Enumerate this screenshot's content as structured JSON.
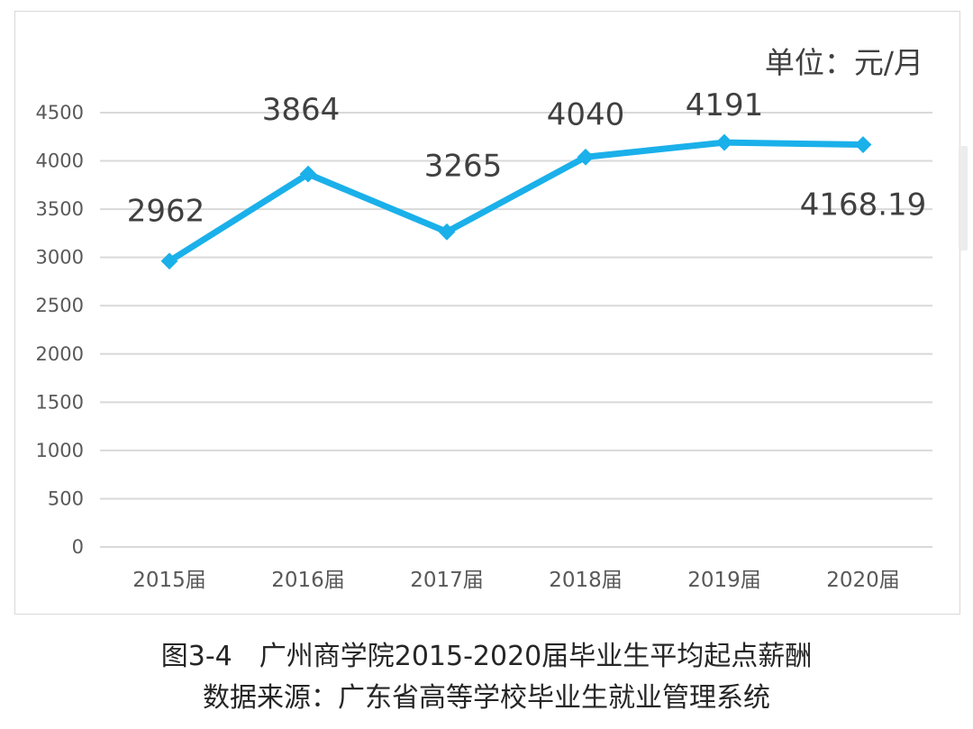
{
  "unit_label": "单位：元/月",
  "figure_caption": "图3-4　广州商学院2015-2020届毕业生平均起点薪酬",
  "source_caption": "数据来源：广东省高等学校毕业生就业管理系统",
  "colors": {
    "series": "#1ab0ea",
    "grid": "#d9d9d9",
    "tick_text": "#595959",
    "data_label": "#404040"
  },
  "chart_data": {
    "type": "line",
    "categories": [
      "2015届",
      "2016届",
      "2017届",
      "2018届",
      "2019届",
      "2020届"
    ],
    "series": [
      {
        "values": [
          2962,
          3864,
          3265,
          4040,
          4191,
          4168.19
        ],
        "labels": [
          "2962",
          "3864",
          "3265",
          "4040",
          "4191",
          "4168.19"
        ]
      }
    ],
    "ylim": [
      0,
      4500
    ],
    "yticks": [
      0,
      500,
      1000,
      1500,
      2000,
      2500,
      3000,
      3500,
      4000,
      4500
    ],
    "grid": true,
    "legend": "none"
  }
}
